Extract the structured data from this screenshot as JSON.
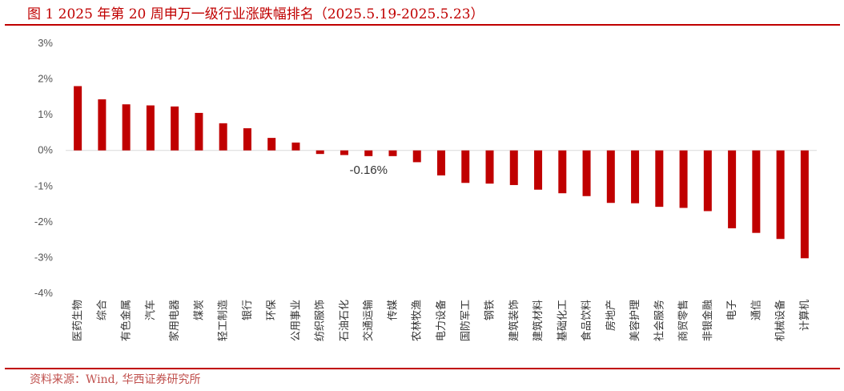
{
  "header": {
    "title": "图 1 2025 年第 20 周申万一级行业涨跌幅排名（2025.5.19-2025.5.23）"
  },
  "footer": {
    "source": "资料来源：Wind, 华西证券研究所"
  },
  "colors": {
    "bar": "#c00000",
    "accent": "#c00000",
    "axis": "#d9d9d9"
  },
  "chart_data": {
    "type": "bar",
    "title": "图 1 2025 年第 20 周申万一级行业涨跌幅排名（2025.5.19-2025.5.23）",
    "xlabel": "",
    "ylabel": "",
    "ylim": [
      -4,
      3
    ],
    "yticks": [
      "3%",
      "2%",
      "1%",
      "0%",
      "-1%",
      "-2%",
      "-3%",
      "-4%"
    ],
    "ytick_values": [
      3,
      2,
      1,
      0,
      -1,
      -2,
      -3,
      -4
    ],
    "grid": false,
    "categories": [
      "医药生物",
      "综合",
      "有色金属",
      "汽车",
      "家用电器",
      "煤炭",
      "轻工制造",
      "银行",
      "环保",
      "公用事业",
      "纺织服饰",
      "石油石化",
      "交通运输",
      "传媒",
      "农林牧渔",
      "电力设备",
      "国防军工",
      "钢铁",
      "建筑装饰",
      "建筑材料",
      "基础化工",
      "食品饮料",
      "房地产",
      "美容护理",
      "社会服务",
      "商贸零售",
      "非银金融",
      "电子",
      "通信",
      "机械设备",
      "计算机"
    ],
    "values": [
      1.8,
      1.43,
      1.29,
      1.26,
      1.23,
      1.05,
      0.76,
      0.62,
      0.35,
      0.22,
      -0.1,
      -0.13,
      -0.16,
      -0.16,
      -0.33,
      -0.7,
      -0.91,
      -0.93,
      -0.97,
      -1.1,
      -1.2,
      -1.28,
      -1.47,
      -1.48,
      -1.58,
      -1.61,
      -1.7,
      -2.18,
      -2.31,
      -2.48,
      -3.02
    ],
    "annotations": [
      {
        "index": 12,
        "text": "-0.16%"
      }
    ]
  }
}
